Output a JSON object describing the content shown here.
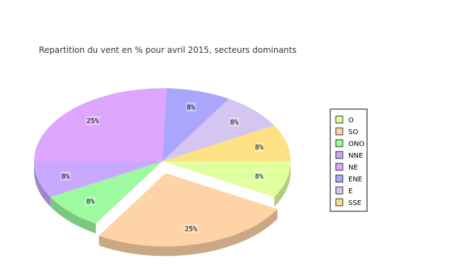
{
  "chart_data": {
    "type": "pie",
    "title": "Repartition du vent en % pour avril 2015, secteurs dominants",
    "slices": [
      {
        "name": "O",
        "value": 8,
        "label": "8%",
        "color": "#e0ff9e",
        "side": "#b3cc7e",
        "exploded": false
      },
      {
        "name": "SO",
        "value": 25,
        "label": "25%",
        "color": "#fed3a6",
        "side": "#cba884",
        "exploded": true
      },
      {
        "name": "ONO",
        "value": 8,
        "label": "8%",
        "color": "#9dfaa0",
        "side": "#7dc880",
        "exploded": false
      },
      {
        "name": "NNE",
        "value": 8,
        "label": "8%",
        "color": "#c8a9fe",
        "side": "#a087cb",
        "exploded": false
      },
      {
        "name": "NE",
        "value": 25,
        "label": "25%",
        "color": "#dea6fe",
        "side": "#b285cb",
        "exploded": false
      },
      {
        "name": "ENE",
        "value": 8,
        "label": "8%",
        "color": "#aaa6fe",
        "side": "#8884cb",
        "exploded": false
      },
      {
        "name": "E",
        "value": 8,
        "label": "8%",
        "color": "#d4c5f1",
        "side": "#a99dc0",
        "exploded": false
      },
      {
        "name": "SSE",
        "value": 8,
        "label": "8%",
        "color": "#fee085",
        "side": "#cbb36a",
        "exploded": false
      }
    ],
    "legend_position": "right"
  }
}
